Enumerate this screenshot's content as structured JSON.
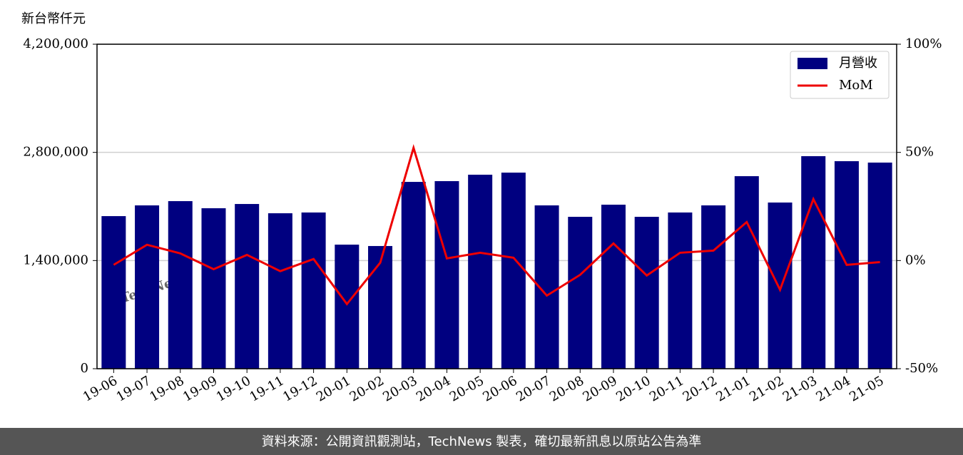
{
  "chart_data": {
    "type": "bar-line",
    "y_label": "新台幣仟元",
    "watermark": "TechNews",
    "footer": "資料來源：公開資訊觀測站，TechNews 製表，確切最新訊息以原站公告為準",
    "categories": [
      "19-06",
      "19-07",
      "19-08",
      "19-09",
      "19-10",
      "19-11",
      "19-12",
      "20-01",
      "20-02",
      "20-03",
      "20-04",
      "20-05",
      "20-06",
      "20-07",
      "20-08",
      "20-09",
      "20-10",
      "20-11",
      "20-12",
      "21-01",
      "21-02",
      "21-03",
      "21-04",
      "21-05"
    ],
    "series": [
      {
        "name": "月營收",
        "color": "#000080",
        "type": "bar",
        "axis": "y",
        "values": [
          1975000,
          2114000,
          2169000,
          2077000,
          2132000,
          2012000,
          2022000,
          1606000,
          1588000,
          2418000,
          2428000,
          2511000,
          2538000,
          2114000,
          1966000,
          2123000,
          1966000,
          2022000,
          2114000,
          2492000,
          2151000,
          2751000,
          2686000,
          2668000
        ]
      },
      {
        "name": "MoM",
        "color": "#ee0000",
        "type": "line",
        "axis": "y2",
        "values": [
          -2.0,
          7.3,
          3.3,
          -4.0,
          2.6,
          -4.9,
          0.7,
          -20.1,
          -1.0,
          52.1,
          1.0,
          3.6,
          1.3,
          -16.2,
          -6.6,
          7.9,
          -6.9,
          3.6,
          4.6,
          17.8,
          -13.5,
          28.4,
          -2.0,
          -0.7
        ]
      }
    ],
    "ylim": [
      0,
      4200000
    ],
    "yticks": [
      0,
      {
        "value": 1400000,
        "label": "1,400,000"
      },
      {
        "value": 2800000,
        "label": "2,800,000"
      },
      {
        "value": 4200000,
        "label": "4,200,000"
      }
    ],
    "y2lim": [
      -50,
      100
    ],
    "y2ticks": [
      {
        "value": -50,
        "label": "-50%"
      },
      {
        "value": 0,
        "label": "0%"
      },
      {
        "value": 50,
        "label": "50%"
      },
      {
        "value": 100,
        "label": "100%"
      }
    ],
    "grid": true,
    "legend": "upper right"
  }
}
